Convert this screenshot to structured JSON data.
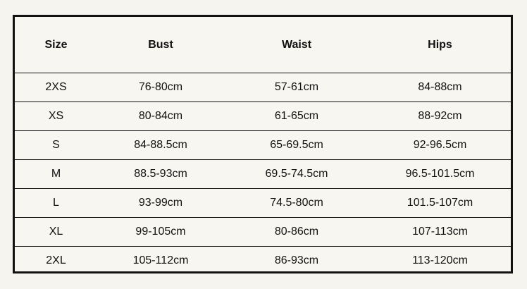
{
  "table": {
    "header": [
      "Size",
      "Bust",
      "Waist",
      "Hips"
    ],
    "rows": [
      [
        "2XS",
        "76-80cm",
        "57-61cm",
        "84-88cm"
      ],
      [
        "XS",
        "80-84cm",
        "61-65cm",
        "88-92cm"
      ],
      [
        "S",
        "84-88.5cm",
        "65-69.5cm",
        "92-96.5cm"
      ],
      [
        "M",
        "88.5-93cm",
        "69.5-74.5cm",
        "96.5-101.5cm"
      ],
      [
        "L",
        "93-99cm",
        "74.5-80cm",
        "101.5-107cm"
      ],
      [
        "XL",
        "99-105cm",
        "80-86cm",
        "107-113cm"
      ],
      [
        "2XL",
        "105-112cm",
        "86-93cm",
        "113-120cm"
      ]
    ]
  }
}
